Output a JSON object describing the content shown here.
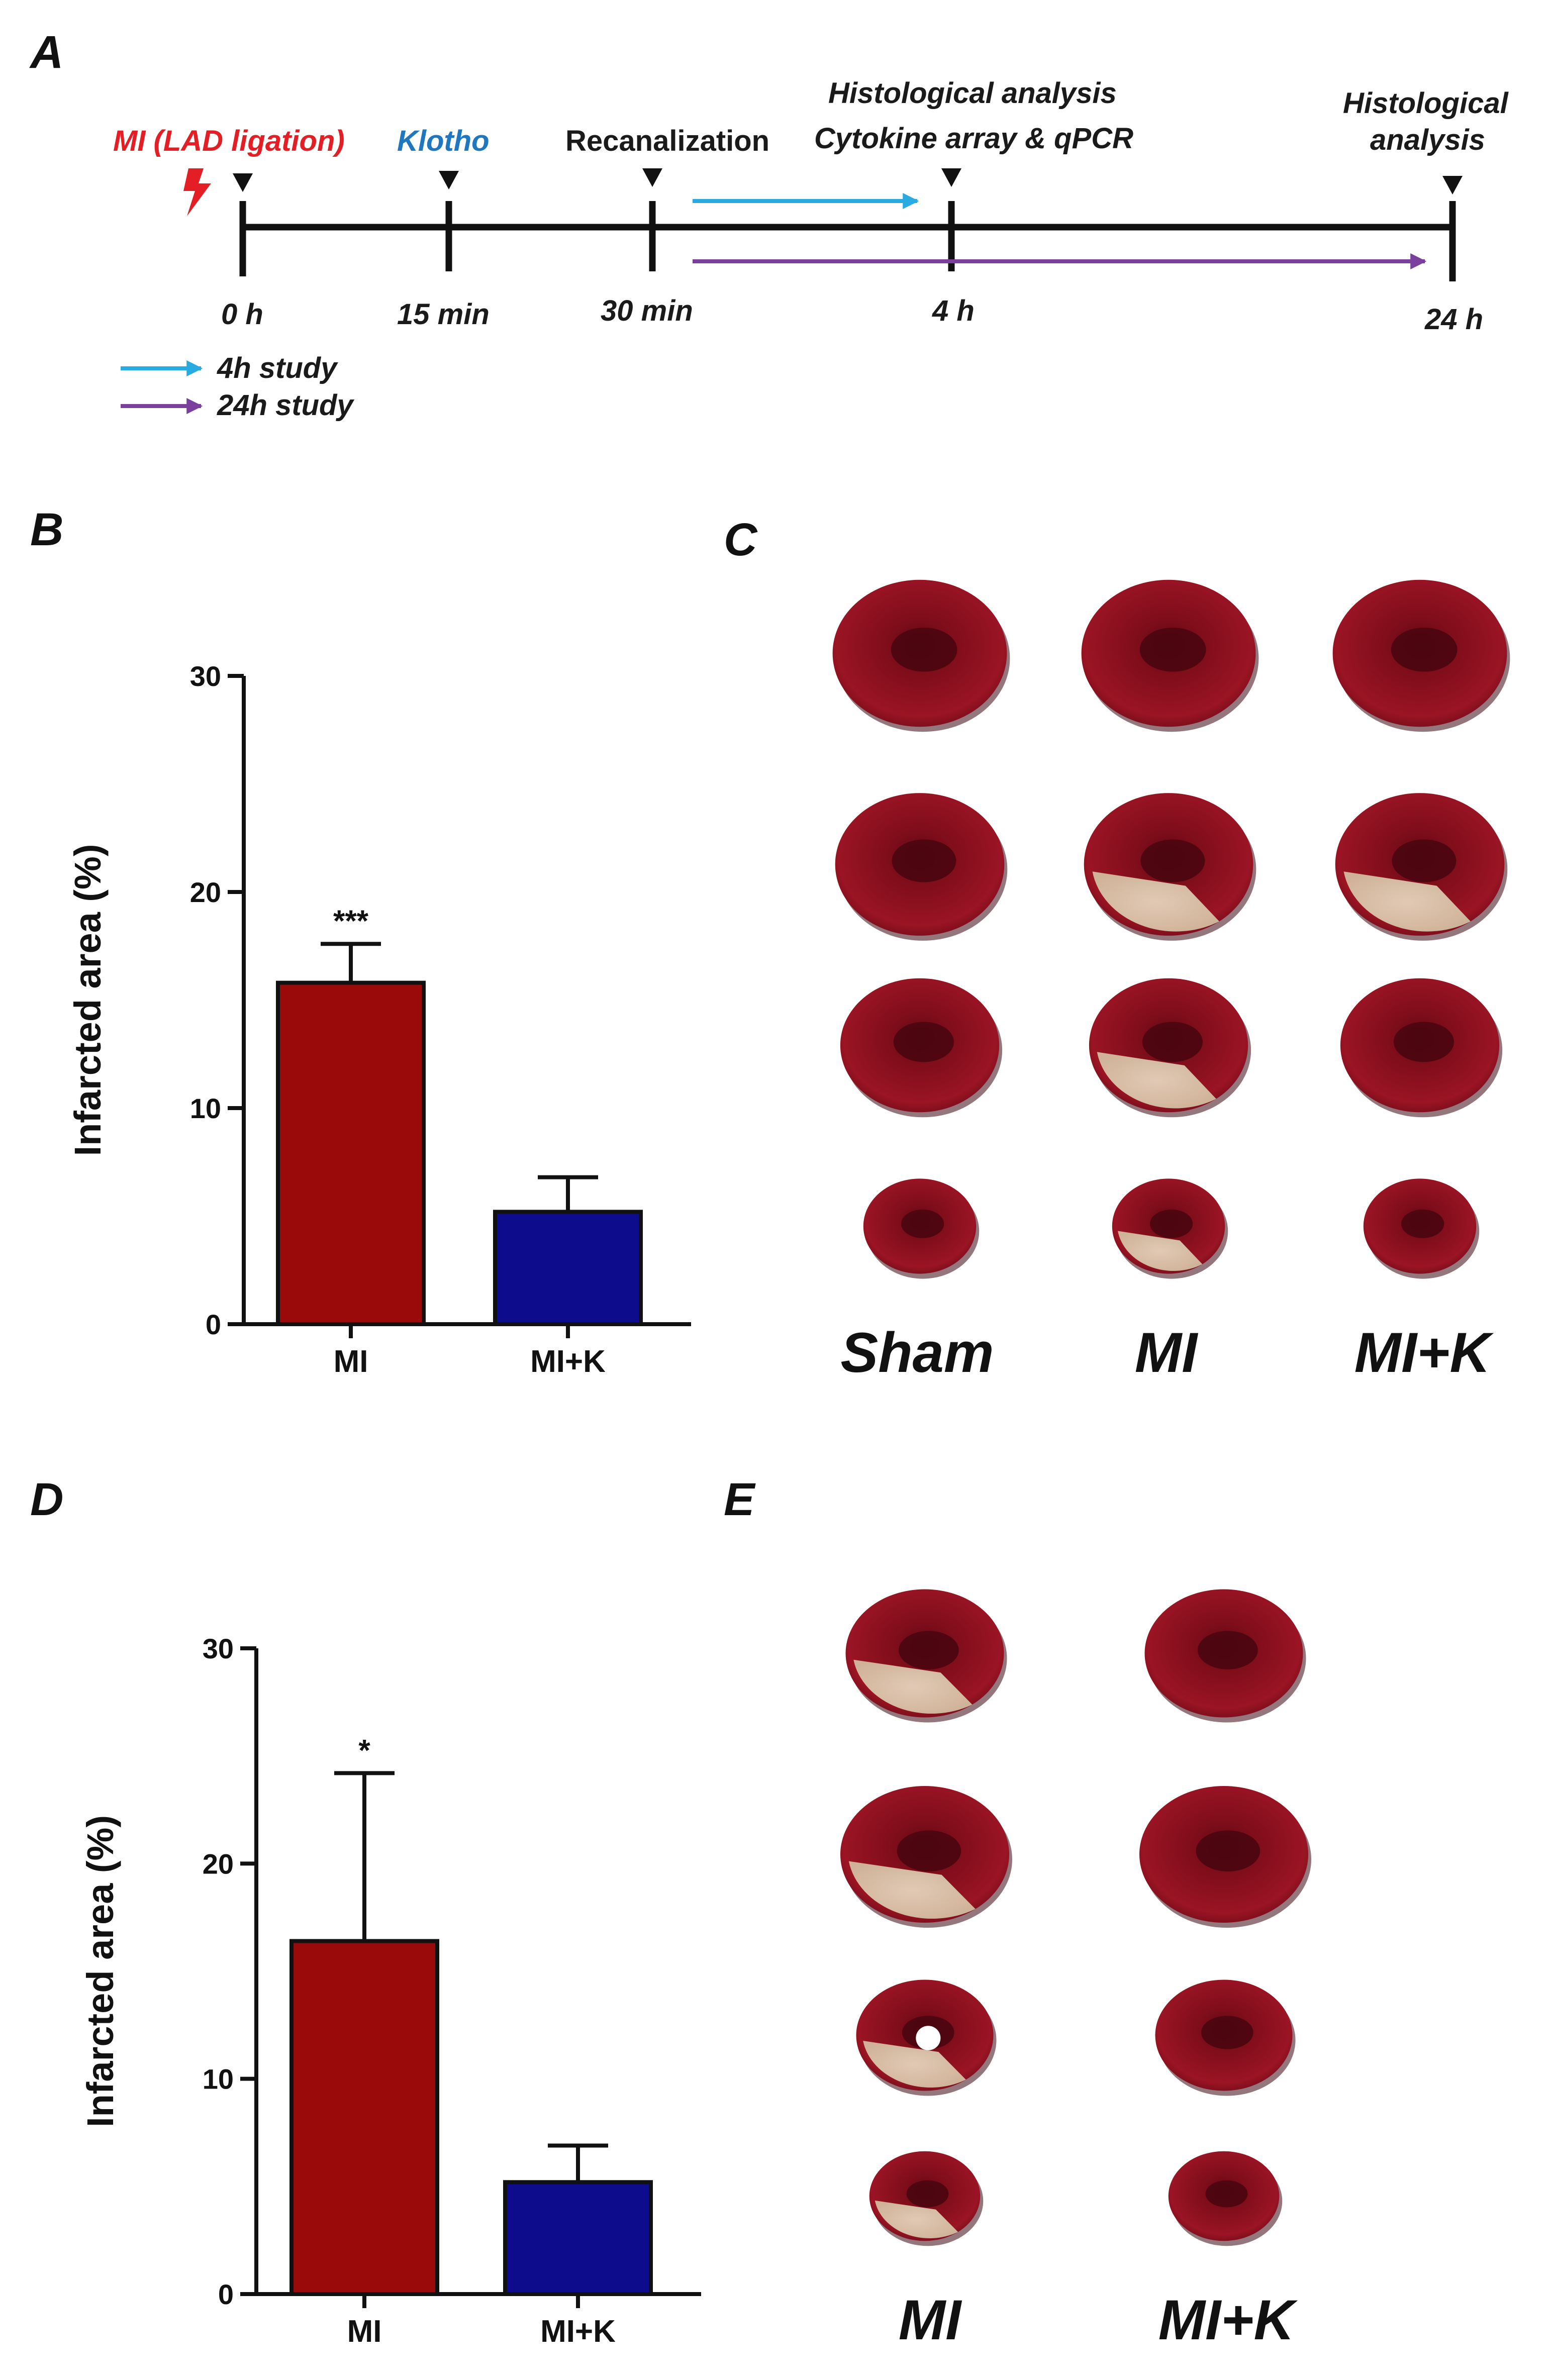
{
  "figure": {
    "panels": {
      "a": "A",
      "b": "B",
      "c": "C",
      "d": "D",
      "e": "E"
    },
    "colors": {
      "red": "#e31e24",
      "blue": "#1f77c0",
      "cyan": "#29abe2",
      "purple": "#7b3f9e",
      "bar_mi": "#9b0a0a",
      "bar_mik": "#0c0c8c",
      "tissue": "#8e0f1c"
    }
  },
  "timeline": {
    "events": [
      {
        "label": "MI (LAD ligation)",
        "time": "0 h",
        "color": "#e31e24"
      },
      {
        "label": "Klotho",
        "time": "15 min",
        "color": "#1f77c0"
      },
      {
        "label": "Recanalization",
        "time": "30 min",
        "color": "#1a1a1a"
      },
      {
        "label_line1": "Histological analysis",
        "label_line2": "Cytokine array & qPCR",
        "time": "4 h",
        "color": "#1a1a1a"
      },
      {
        "label_line1": "Histological",
        "label_line2": "analysis",
        "time": "24 h",
        "color": "#1a1a1a"
      }
    ],
    "legend": [
      {
        "label": "4h study",
        "color": "#29abe2"
      },
      {
        "label": "24h study",
        "color": "#7b3f9e"
      }
    ]
  },
  "chart_data": [
    {
      "type": "bar",
      "panel": "B",
      "categories": [
        "MI",
        "MI+K"
      ],
      "values": [
        15.8,
        5.2
      ],
      "errors": [
        1.8,
        1.6
      ],
      "significance": [
        "***",
        ""
      ],
      "title": "",
      "xlabel": "",
      "ylabel": "Infarcted area (%)",
      "ylim": [
        0,
        30
      ],
      "yticks": [
        0,
        10,
        20,
        30
      ],
      "colors": [
        "#9b0a0a",
        "#0c0c8c"
      ]
    },
    {
      "type": "bar",
      "panel": "D",
      "categories": [
        "MI",
        "MI+K"
      ],
      "values": [
        16.4,
        5.2
      ],
      "errors": [
        7.8,
        1.7
      ],
      "significance": [
        "*",
        ""
      ],
      "title": "",
      "xlabel": "",
      "ylabel": "Infarcted area (%)",
      "ylim": [
        0,
        30
      ],
      "yticks": [
        0,
        10,
        20,
        30
      ],
      "colors": [
        "#9b0a0a",
        "#0c0c8c"
      ]
    }
  ],
  "photos": {
    "panel_c_groups": [
      "Sham",
      "MI",
      "MI+K"
    ],
    "panel_e_groups": [
      "MI",
      "MI+K"
    ]
  }
}
